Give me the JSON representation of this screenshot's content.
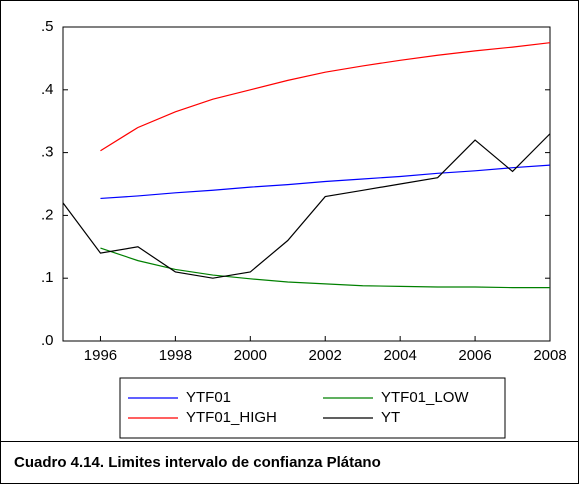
{
  "chart_data": {
    "type": "line",
    "caption": "Cuadro 4.14. Limites intervalo de confianza Plátano",
    "x": [
      1995,
      1996,
      1997,
      1998,
      1999,
      2000,
      2001,
      2002,
      2003,
      2004,
      2005,
      2006,
      2007,
      2008
    ],
    "xlim": [
      1995,
      2008
    ],
    "xticks": [
      1996,
      1998,
      2000,
      2002,
      2004,
      2006,
      2008
    ],
    "ylim": [
      0,
      0.5
    ],
    "yticks": [
      {
        "value": 0,
        "label": ".0"
      },
      {
        "value": 0.1,
        "label": ".1"
      },
      {
        "value": 0.2,
        "label": ".2"
      },
      {
        "value": 0.3,
        "label": ".3"
      },
      {
        "value": 0.4,
        "label": ".4"
      },
      {
        "value": 0.5,
        "label": ".5"
      }
    ],
    "series": [
      {
        "name": "YTF01",
        "color": "#0000ff",
        "values": [
          null,
          0.227,
          0.231,
          0.236,
          0.24,
          0.245,
          0.249,
          0.254,
          0.258,
          0.262,
          0.267,
          0.271,
          0.276,
          0.28
        ]
      },
      {
        "name": "YTF01_LOW",
        "color": "#008000",
        "values": [
          null,
          0.148,
          0.128,
          0.114,
          0.105,
          0.099,
          0.094,
          0.091,
          0.088,
          0.087,
          0.086,
          0.086,
          0.085,
          0.085
        ]
      },
      {
        "name": "YTF01_HIGH",
        "color": "#ff0000",
        "values": [
          null,
          0.303,
          0.34,
          0.365,
          0.385,
          0.4,
          0.415,
          0.428,
          0.438,
          0.447,
          0.455,
          0.462,
          0.468,
          0.475
        ]
      },
      {
        "name": "YT",
        "color": "#000000",
        "values": [
          0.22,
          0.14,
          0.15,
          0.11,
          0.1,
          0.11,
          0.16,
          0.23,
          0.24,
          0.25,
          0.26,
          0.32,
          0.27,
          0.33
        ]
      }
    ],
    "legend": "bottom"
  }
}
